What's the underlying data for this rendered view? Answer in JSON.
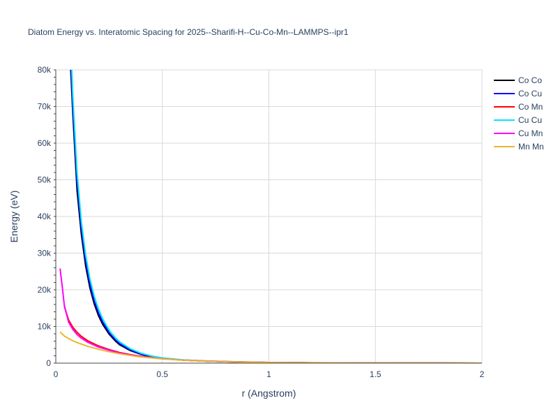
{
  "chart_data": {
    "type": "line",
    "title": "Diatom Energy vs. Interatomic Spacing for 2025--Sharifi-H--Cu-Co-Mn--LAMMPS--ipr1",
    "xlabel": "r (Angstrom)",
    "ylabel": "Energy (eV)",
    "xlim": [
      0,
      2
    ],
    "ylim": [
      0,
      80000
    ],
    "x_ticks": [
      0,
      0.5,
      1,
      1.5,
      2
    ],
    "x_tick_labels": [
      "0",
      "0.5",
      "1",
      "1.5",
      "2"
    ],
    "y_ticks": [
      0,
      10000,
      20000,
      30000,
      40000,
      50000,
      60000,
      70000,
      80000
    ],
    "y_tick_labels": [
      "0",
      "10k",
      "20k",
      "30k",
      "40k",
      "50k",
      "60k",
      "70k",
      "80k"
    ],
    "grid": true,
    "legend_position": "top-right",
    "series": [
      {
        "name": "Co Co",
        "color": "#000000",
        "x": [
          0.07,
          0.08,
          0.1,
          0.12,
          0.14,
          0.16,
          0.18,
          0.2,
          0.22,
          0.25,
          0.28,
          0.3,
          0.35,
          0.4,
          0.45,
          0.5,
          0.6,
          0.7,
          0.8,
          0.9,
          1.0,
          1.2,
          1.5,
          2.0
        ],
        "y": [
          80000,
          68000,
          47000,
          35000,
          26500,
          20500,
          16200,
          13000,
          10600,
          7900,
          6000,
          5000,
          3400,
          2400,
          1700,
          1250,
          800,
          550,
          380,
          260,
          180,
          100,
          40,
          5
        ]
      },
      {
        "name": "Co Cu",
        "color": "#0000ff",
        "x": [
          0.072,
          0.08,
          0.1,
          0.12,
          0.14,
          0.16,
          0.18,
          0.2,
          0.22,
          0.25,
          0.28,
          0.3,
          0.35,
          0.4,
          0.45,
          0.5,
          0.6,
          0.7,
          0.8,
          0.9,
          1.0,
          1.2,
          1.5,
          2.0
        ],
        "y": [
          80000,
          70000,
          49500,
          36500,
          27800,
          21500,
          17000,
          13700,
          11200,
          8300,
          6300,
          5300,
          3600,
          2500,
          1800,
          1300,
          830,
          570,
          390,
          270,
          185,
          100,
          40,
          5
        ]
      },
      {
        "name": "Co Mn",
        "color": "#ff0000",
        "x": [
          0.04,
          0.06,
          0.08,
          0.1,
          0.12,
          0.15,
          0.2,
          0.25,
          0.3,
          0.35,
          0.4,
          0.5,
          0.6,
          0.7,
          0.8,
          0.9,
          1.0,
          1.2,
          1.5,
          2.0
        ],
        "y": [
          15500,
          11800,
          9800,
          8400,
          7300,
          6100,
          4700,
          3700,
          2900,
          2300,
          1850,
          1250,
          850,
          600,
          420,
          300,
          200,
          110,
          45,
          5
        ]
      },
      {
        "name": "Cu Cu",
        "color": "#00e5ff",
        "x": [
          0.075,
          0.08,
          0.1,
          0.12,
          0.14,
          0.16,
          0.18,
          0.2,
          0.22,
          0.25,
          0.28,
          0.3,
          0.35,
          0.4,
          0.45,
          0.5,
          0.6,
          0.7,
          0.8,
          0.9,
          1.0,
          1.2,
          1.5,
          2.0
        ],
        "y": [
          80000,
          73000,
          52000,
          38500,
          29500,
          23000,
          18300,
          14800,
          12100,
          9000,
          6900,
          5800,
          3900,
          2700,
          1950,
          1400,
          880,
          600,
          410,
          280,
          190,
          100,
          40,
          5
        ]
      },
      {
        "name": "Cu Mn",
        "color": "#ff00ff",
        "x": [
          0.02,
          0.03,
          0.04,
          0.06,
          0.08,
          0.1,
          0.12,
          0.15,
          0.2,
          0.25,
          0.3,
          0.35,
          0.4,
          0.5,
          0.6,
          0.7,
          0.8,
          0.9,
          1.0,
          1.2,
          1.5,
          2.0
        ],
        "y": [
          25800,
          21000,
          15800,
          11200,
          9200,
          7800,
          6800,
          5700,
          4400,
          3500,
          2750,
          2200,
          1800,
          1200,
          820,
          580,
          400,
          280,
          190,
          100,
          40,
          5
        ]
      },
      {
        "name": "Mn Mn",
        "color": "#ebb62e",
        "x": [
          0.02,
          0.04,
          0.06,
          0.08,
          0.1,
          0.12,
          0.15,
          0.2,
          0.25,
          0.3,
          0.35,
          0.4,
          0.5,
          0.6,
          0.7,
          0.8,
          0.9,
          1.0,
          1.2,
          1.5,
          2.0
        ],
        "y": [
          8500,
          7400,
          6700,
          6100,
          5600,
          5200,
          4600,
          3800,
          3100,
          2550,
          2100,
          1700,
          1150,
          800,
          560,
          390,
          270,
          180,
          95,
          35,
          5
        ]
      }
    ]
  }
}
